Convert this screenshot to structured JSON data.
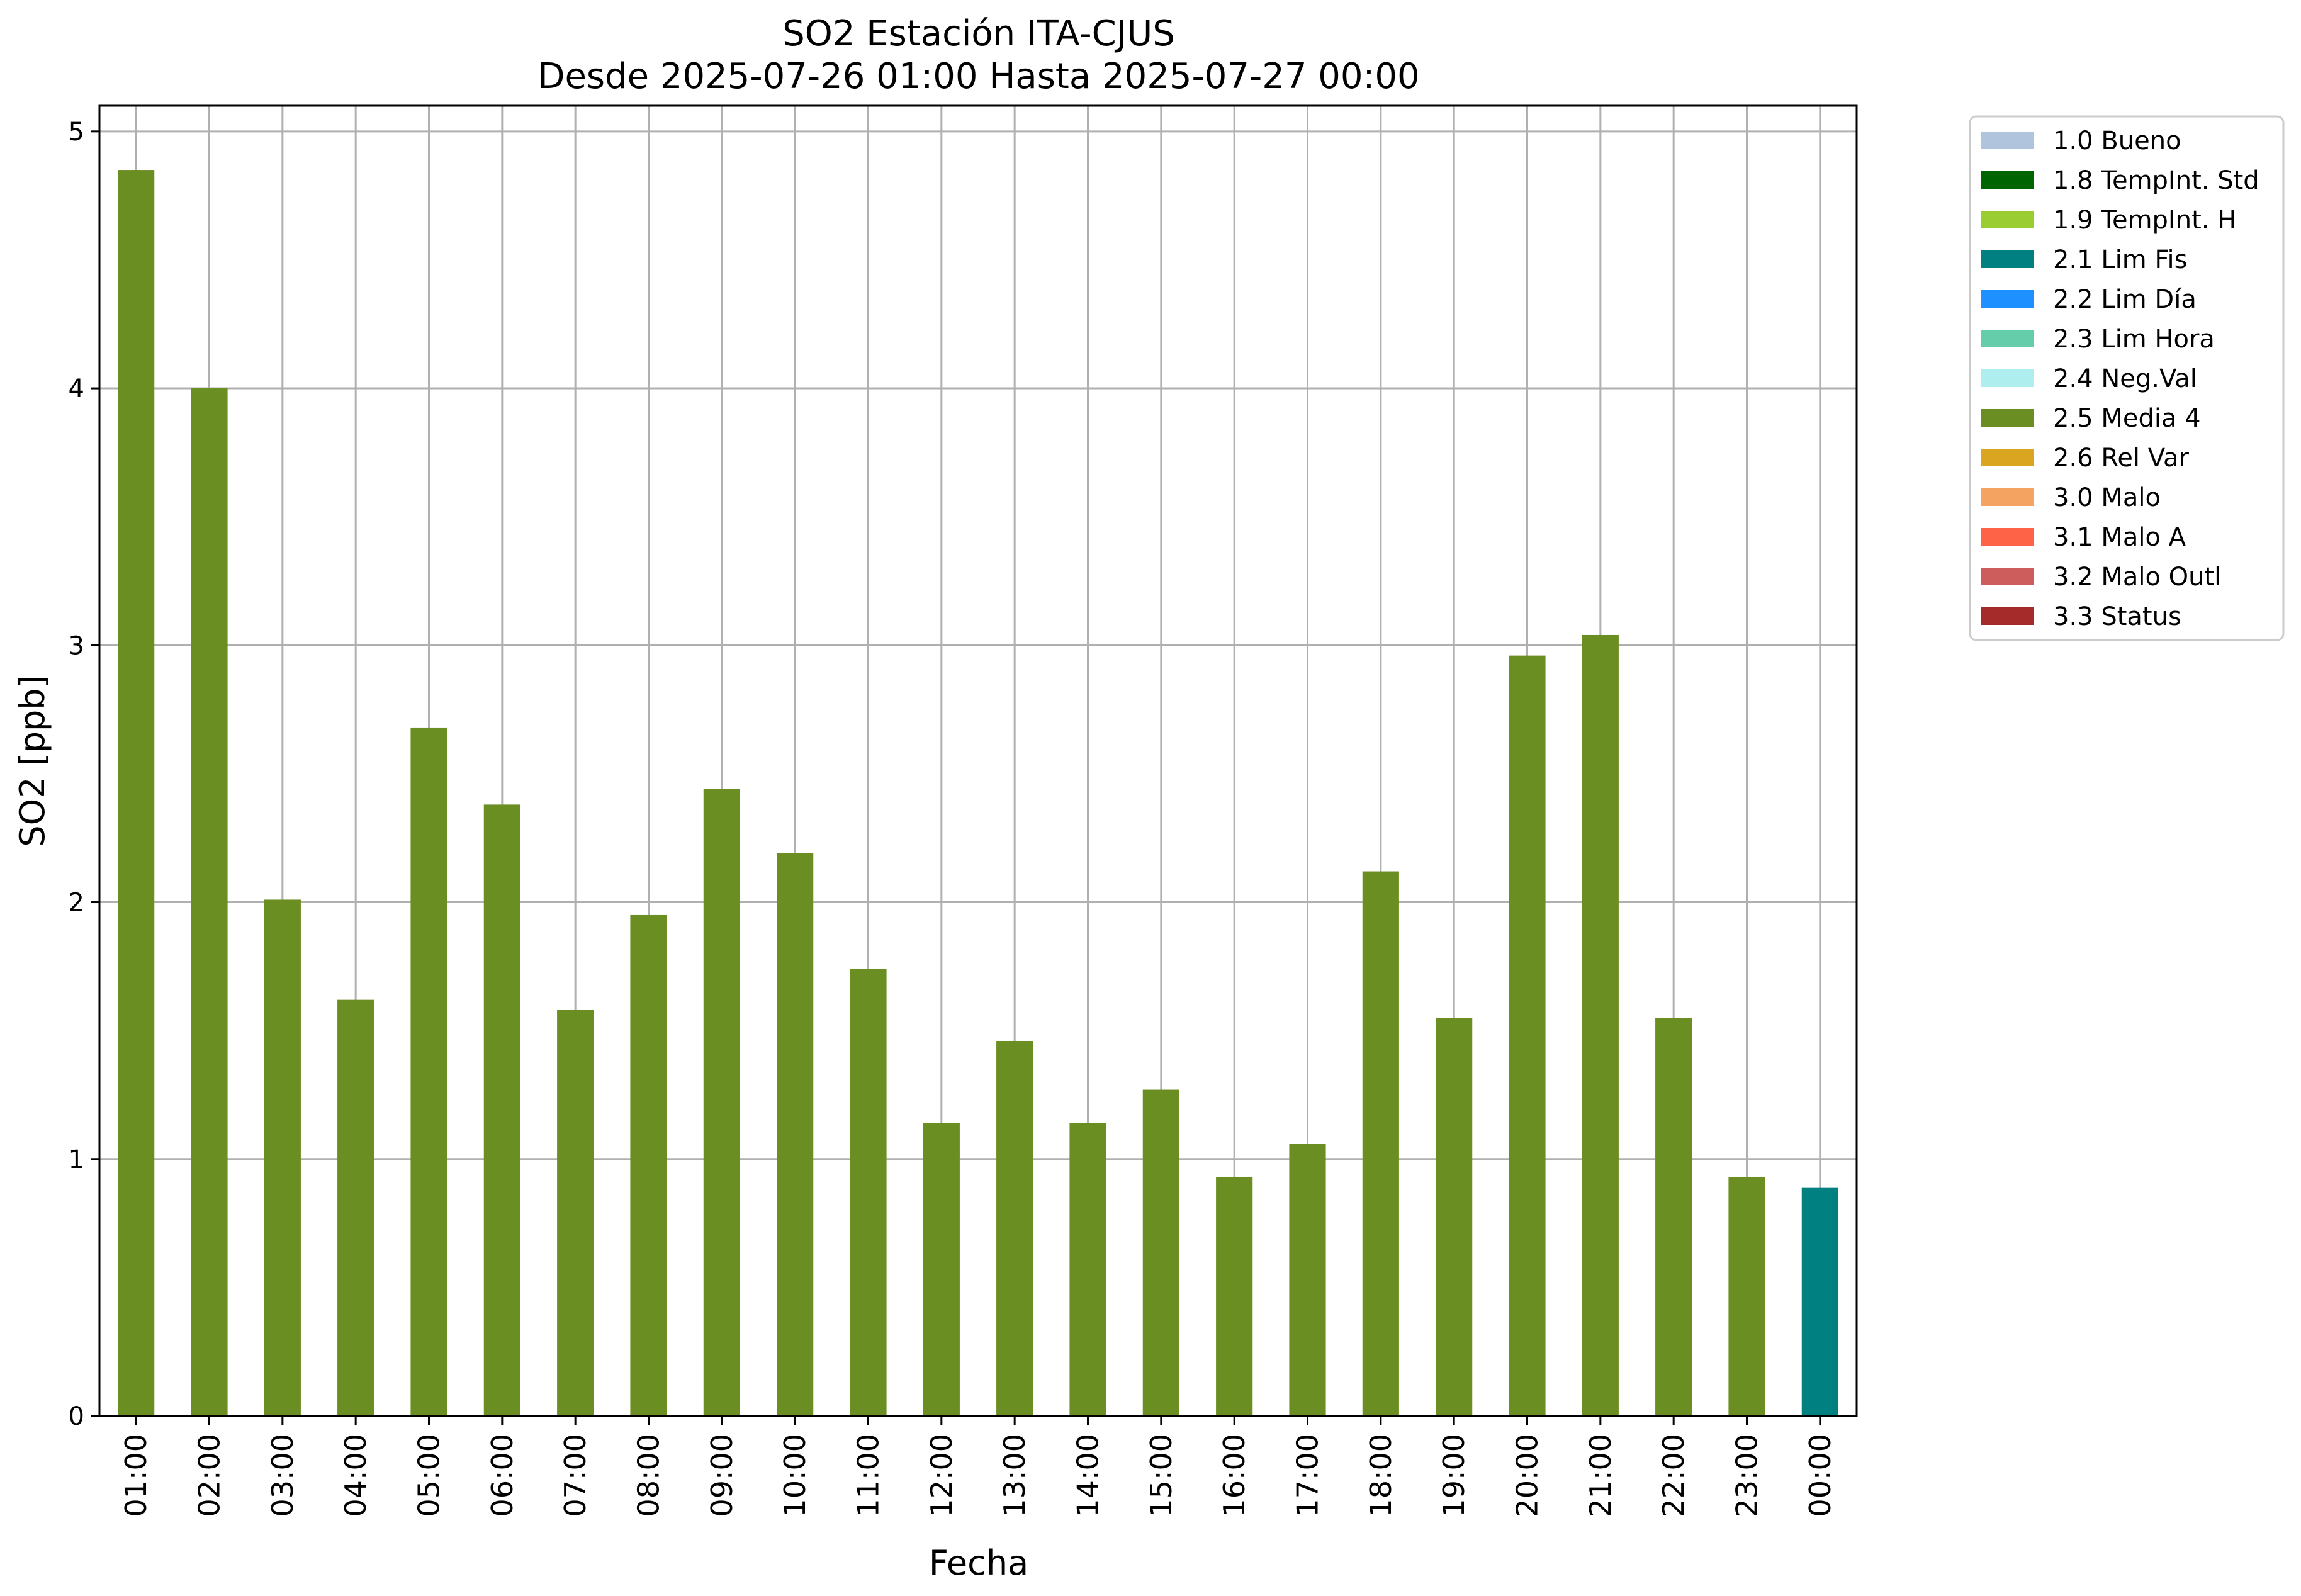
{
  "chart_data": {
    "type": "bar",
    "title": "SO2 Estación ITA-CJUS",
    "subtitle": "Desde 2025-07-26 01:00 Hasta 2025-07-27 00:00",
    "xlabel": "Fecha",
    "ylabel": "SO2 [ppb]",
    "ylim": [
      0,
      5.1
    ],
    "yticks": [
      "0",
      "1",
      "2",
      "3",
      "4",
      "5"
    ],
    "grid": true,
    "legend_position": "outside-right",
    "categories": [
      "01:00",
      "02:00",
      "03:00",
      "04:00",
      "05:00",
      "06:00",
      "07:00",
      "08:00",
      "09:00",
      "10:00",
      "11:00",
      "12:00",
      "13:00",
      "14:00",
      "15:00",
      "16:00",
      "17:00",
      "18:00",
      "19:00",
      "20:00",
      "21:00",
      "22:00",
      "23:00",
      "00:00"
    ],
    "values": [
      4.85,
      4.0,
      2.01,
      1.62,
      2.68,
      2.38,
      1.58,
      1.95,
      2.44,
      2.19,
      1.74,
      1.14,
      1.46,
      1.14,
      1.27,
      0.93,
      1.06,
      2.12,
      1.55,
      2.96,
      3.04,
      1.55,
      0.93,
      0.89
    ],
    "bar_flags": [
      "2.5",
      "2.5",
      "2.5",
      "2.5",
      "2.5",
      "2.5",
      "2.5",
      "2.5",
      "2.5",
      "2.5",
      "2.5",
      "2.5",
      "2.5",
      "2.5",
      "2.5",
      "2.5",
      "2.5",
      "2.5",
      "2.5",
      "2.5",
      "2.5",
      "2.5",
      "2.5",
      "2.1"
    ],
    "legend": [
      {
        "code": "1.0",
        "label": "1.0 Bueno",
        "color": "#b0c4de"
      },
      {
        "code": "1.8",
        "label": "1.8 TempInt. Std",
        "color": "#006400"
      },
      {
        "code": "1.9",
        "label": "1.9 TempInt. H",
        "color": "#9acd32"
      },
      {
        "code": "2.1",
        "label": "2.1 Lim Fis",
        "color": "#008080"
      },
      {
        "code": "2.2",
        "label": "2.2 Lim Día",
        "color": "#1e90ff"
      },
      {
        "code": "2.3",
        "label": "2.3 Lim Hora",
        "color": "#66cdaa"
      },
      {
        "code": "2.4",
        "label": "2.4 Neg.Val",
        "color": "#afeeee"
      },
      {
        "code": "2.5",
        "label": "2.5 Media 4",
        "color": "#6b8e23"
      },
      {
        "code": "2.6",
        "label": "2.6 Rel Var",
        "color": "#daa520"
      },
      {
        "code": "3.0",
        "label": "3.0 Malo",
        "color": "#f4a460"
      },
      {
        "code": "3.1",
        "label": "3.1 Malo A",
        "color": "#ff6347"
      },
      {
        "code": "3.2",
        "label": "3.2 Malo Outl",
        "color": "#cd5c5c"
      },
      {
        "code": "3.3",
        "label": "3.3 Status",
        "color": "#a52a2a"
      }
    ]
  }
}
